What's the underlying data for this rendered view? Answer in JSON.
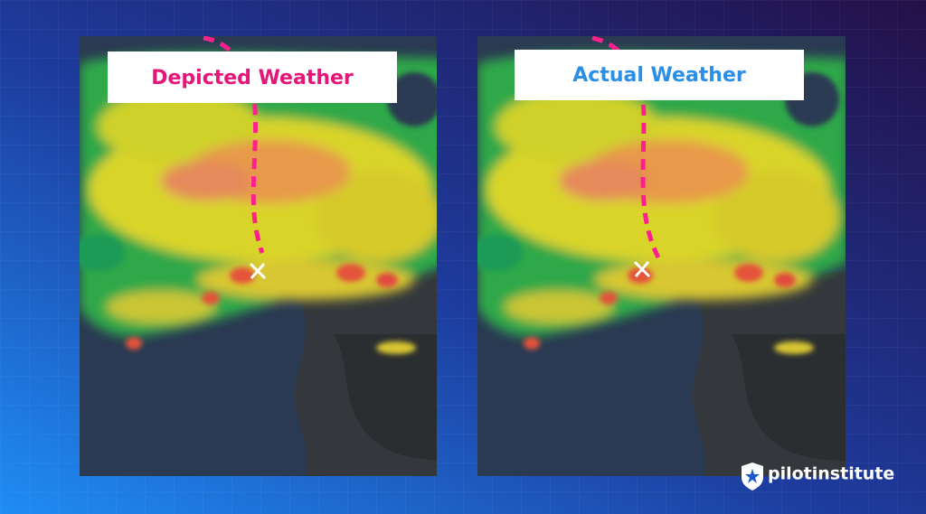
{
  "panels": [
    {
      "label": "Depicted Weather"
    },
    {
      "label": "Actual Weather"
    }
  ],
  "logo": {
    "text": "pilotinstitute"
  }
}
